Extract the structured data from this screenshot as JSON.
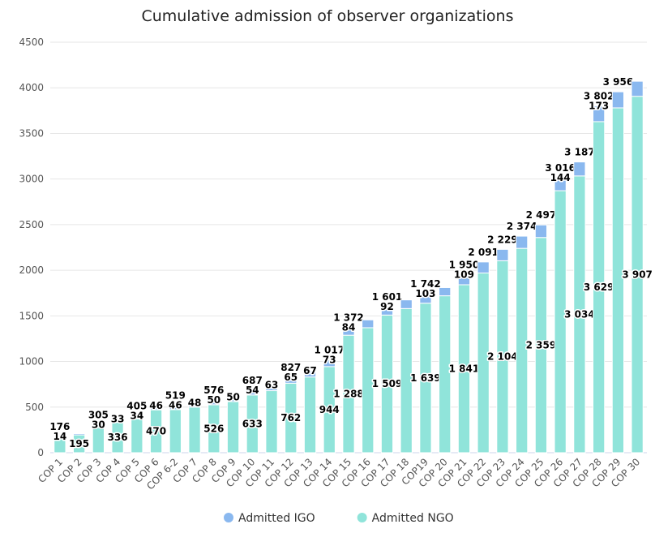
{
  "chart_data": {
    "type": "stacked_bar",
    "title": "Cumulative admission of observer organizations",
    "categories": [
      "COP 1",
      "COP 2",
      "COP 3",
      "COP 4",
      "COP 5",
      "COP 6",
      "COP 6-2",
      "COP 7",
      "COP 8",
      "COP 9",
      "COP 10",
      "COP 11",
      "COP 12",
      "COP 13",
      "COP 14",
      "COP 15",
      "COP 16",
      "COP 17",
      "COP 18",
      "COP19",
      "COP 20",
      "COP 21",
      "COP 22",
      "COP 23",
      "COP 24",
      "COP 25",
      "COP 26",
      "COP 27",
      "COP 28",
      "COP 29",
      "COP 30"
    ],
    "series": [
      {
        "name": "Admitted IGO",
        "color": "#8ab8ef",
        "values": [
          14,
          14,
          30,
          33,
          34,
          46,
          46,
          48,
          50,
          50,
          54,
          63,
          65,
          67,
          73,
          84,
          86,
          92,
          95,
          103,
          90,
          109,
          121,
          125,
          134,
          138,
          144,
          153,
          173,
          176,
          165
        ],
        "value_labels": [
          "14",
          null,
          "30",
          "33",
          "34",
          "46",
          "46",
          "48",
          "50",
          "50",
          "54",
          "63",
          "65",
          "67",
          "73",
          "84",
          null,
          "92",
          null,
          "103",
          null,
          "109",
          null,
          null,
          null,
          null,
          "144",
          null,
          "173",
          null,
          null
        ]
      },
      {
        "name": "Admitted NGO",
        "color": "#90e4da",
        "values": [
          162,
          195,
          275,
          336,
          371,
          470,
          473,
          500,
          526,
          560,
          633,
          680,
          762,
          830,
          944,
          1288,
          1370,
          1509,
          1580,
          1639,
          1720,
          1841,
          1970,
          2104,
          2240,
          2359,
          2872,
          3034,
          3629,
          3780,
          3907
        ],
        "value_labels": [
          null,
          "195",
          null,
          "336",
          null,
          "470",
          null,
          null,
          "526",
          null,
          "633",
          null,
          "762",
          null,
          "944",
          "1 288",
          null,
          "1 509",
          null,
          "1 639",
          null,
          "1 841",
          null,
          "2 104",
          null,
          "2 359",
          null,
          "3 034",
          "3 629",
          null,
          "3 907"
        ]
      }
    ],
    "totals": {
      "values": [
        176,
        null,
        305,
        null,
        405,
        null,
        519,
        null,
        576,
        null,
        687,
        null,
        827,
        null,
        1017,
        1372,
        null,
        1601,
        null,
        1742,
        null,
        1950,
        2091,
        2229,
        2374,
        2497,
        3016,
        3187,
        3802,
        3956,
        null
      ],
      "value_labels": [
        "176",
        null,
        "305",
        null,
        "405",
        null,
        "519",
        null,
        "576",
        null,
        "687",
        null,
        "827",
        null,
        "1 017",
        "1 372",
        null,
        "1 601",
        null,
        "1 742",
        null,
        "1 950",
        "2 091",
        "2 229",
        "2 374",
        "2 497",
        "3 016",
        "3 187",
        "3 802",
        "3 956",
        null
      ]
    },
    "ylim": [
      0,
      4500
    ],
    "yticks": [
      0,
      500,
      1000,
      1500,
      2000,
      2500,
      3000,
      3500,
      4000,
      4500
    ],
    "grid": true,
    "legend": "bottom"
  }
}
